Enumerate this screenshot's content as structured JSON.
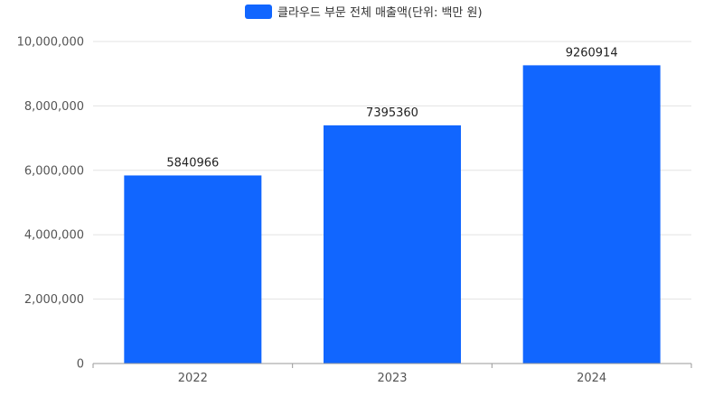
{
  "colors": {
    "bar": "#1166ff",
    "grid": "#e3e3e3",
    "axis": "#999999"
  },
  "chart_data": {
    "type": "bar",
    "categories": [
      "2022",
      "2023",
      "2024"
    ],
    "series": [
      {
        "name": "클라우드 부문 전체 매출액(단위: 백만 원)",
        "values": [
          5840966,
          7395360,
          9260914
        ]
      }
    ],
    "y_ticks": [
      "0",
      "2,000,000",
      "4,000,000",
      "6,000,000",
      "8,000,000",
      "10,000,000"
    ],
    "ylim": [
      0,
      10000000
    ],
    "grid": true,
    "legend": "top-center",
    "data_labels": [
      "5840966",
      "7395360",
      "9260914"
    ]
  }
}
